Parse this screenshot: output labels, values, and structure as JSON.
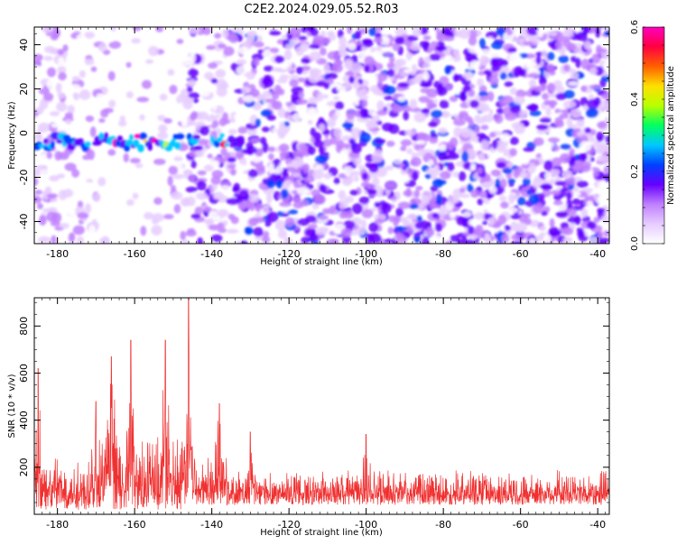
{
  "title": "C2E2.2024.029.05.52.R03",
  "colors": {
    "snr_line": "#f03030",
    "spectro_stops": [
      "#ffffff",
      "#e6ccff",
      "#c080ff",
      "#6600ff",
      "#0040ff",
      "#00c8ff",
      "#00ff60",
      "#b8ff00",
      "#ffe000",
      "#ff6000",
      "#ff0040",
      "#ff00c0"
    ]
  },
  "chart_data": [
    {
      "type": "heatmap",
      "xlabel": "Height of straight line (km)",
      "ylabel": "Frequency (Hz)",
      "xlim": [
        -186,
        -37
      ],
      "ylim": [
        -50,
        48
      ],
      "xticks": [
        -180,
        -160,
        -140,
        -120,
        -100,
        -80,
        -60,
        -40
      ],
      "xtick_labels": [
        "-180",
        "-160",
        "-140",
        "-120",
        "-100",
        "-80",
        "-60",
        "-40"
      ],
      "yticks": [
        -40,
        -20,
        0,
        20,
        40
      ],
      "ytick_labels": [
        "-40",
        "-20",
        "0",
        "20",
        "40"
      ],
      "colorbar": {
        "label": "Normalized spectral amplitude",
        "range": [
          0,
          0.6
        ],
        "ticks": [
          0.0,
          0.2,
          0.4,
          0.6
        ],
        "tick_labels": [
          "0.0",
          "0.2",
          "0.4",
          "0.6"
        ]
      },
      "strong_band": {
        "frequency_hz": -4,
        "x_range": [
          -186,
          -136
        ]
      },
      "grid": false
    },
    {
      "type": "line",
      "xlabel": "Height of straight line (km)",
      "ylabel": "SNR (10 * v/v)",
      "xlim": [
        -186,
        -37
      ],
      "ylim": [
        0,
        920
      ],
      "xticks": [
        -180,
        -160,
        -140,
        -120,
        -100,
        -80,
        -60,
        -40
      ],
      "xtick_labels": [
        "-180",
        "-160",
        "-140",
        "-120",
        "-100",
        "-80",
        "-60",
        "-40"
      ],
      "yticks": [
        200,
        400,
        600,
        800
      ],
      "ytick_labels": [
        "200",
        "400",
        "600",
        "800"
      ],
      "peaks": [
        {
          "x": -185,
          "y": 620
        },
        {
          "x": -170,
          "y": 480
        },
        {
          "x": -166,
          "y": 670
        },
        {
          "x": -161,
          "y": 740
        },
        {
          "x": -152,
          "y": 740
        },
        {
          "x": -146,
          "y": 920
        },
        {
          "x": -138,
          "y": 470
        },
        {
          "x": -130,
          "y": 350
        },
        {
          "x": -100,
          "y": 340
        }
      ],
      "grid": false
    }
  ]
}
